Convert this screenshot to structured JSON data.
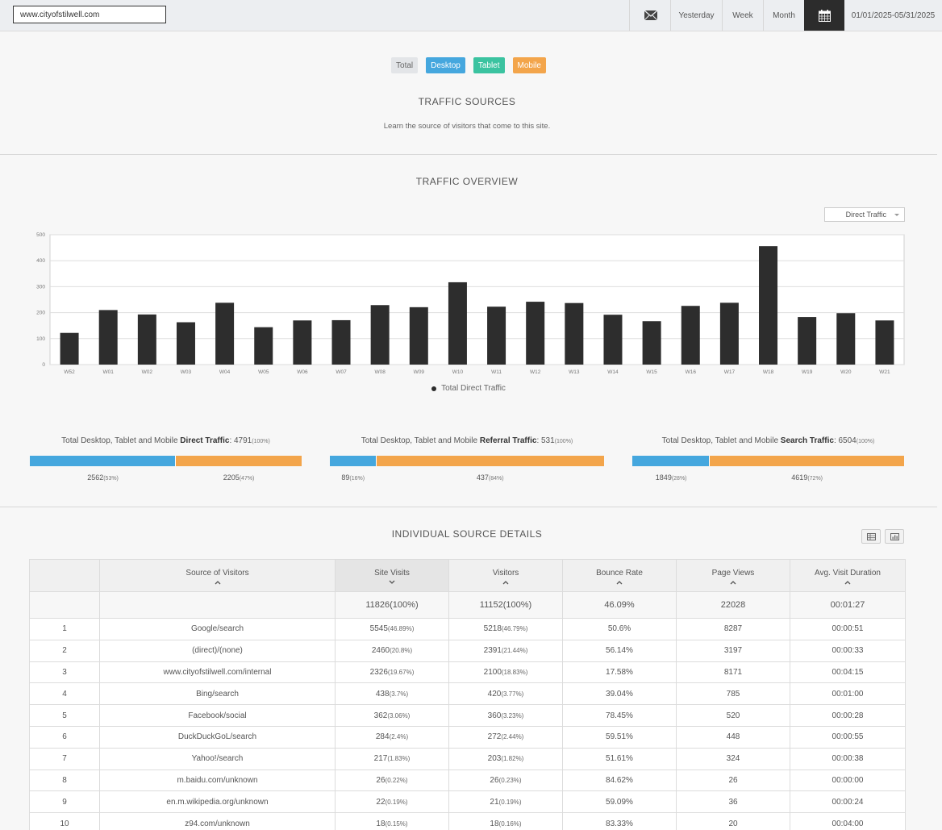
{
  "topbar": {
    "url_value": "www.cityofstilwell.com",
    "mail_icon": "mail-icon",
    "yesterday_label": "Yesterday",
    "week_label": "Week",
    "month_label": "Month",
    "calendar_icon": "calendar-icon",
    "date_range": "01/01/2025-05/31/2025"
  },
  "devices": {
    "total": "Total",
    "desktop": "Desktop",
    "tablet": "Tablet",
    "mobile": "Mobile"
  },
  "traffic_sources": {
    "title": "TRAFFIC  SOURCES",
    "subtitle": "Learn the source of visitors that come to this site."
  },
  "overview": {
    "title": "TRAFFIC  OVERVIEW",
    "dropdown_value": "Direct Traffic",
    "legend": "Total Direct Traffic"
  },
  "chart_data": {
    "type": "bar",
    "categories": [
      "W52",
      "W01",
      "W02",
      "W03",
      "W04",
      "W05",
      "W06",
      "W07",
      "W08",
      "W09",
      "W10",
      "W11",
      "W12",
      "W13",
      "W14",
      "W15",
      "W16",
      "W17",
      "W18",
      "W19",
      "W20",
      "W21"
    ],
    "series": [
      {
        "name": "Total Direct Traffic",
        "values": [
          122,
          210,
          193,
          163,
          238,
          144,
          170,
          171,
          229,
          221,
          317,
          223,
          242,
          237,
          192,
          167,
          226,
          238,
          456,
          183,
          198,
          170
        ]
      }
    ],
    "y_ticks": [
      "0",
      "100",
      "200",
      "300",
      "400",
      "500"
    ],
    "ylim": [
      0,
      500
    ],
    "grid": true,
    "legend_position": "bottom",
    "bar_color": "#2d2d2d"
  },
  "totals": [
    {
      "prefix": "Total Desktop, Tablet and Mobile ",
      "bold": "Direct Traffic",
      "value": ": 4791",
      "pct": "(100%)",
      "desktop": 2562,
      "desktop_val": "2562",
      "desktop_pct": "(53%)",
      "mobile_val": "2205",
      "mobile_pct": "(47%)"
    },
    {
      "prefix": "Total Desktop, Tablet and Mobile ",
      "bold": "Referral Traffic",
      "value": ": 531",
      "pct": "(100%)",
      "desktop": 89,
      "desktop_val": "89",
      "desktop_pct": "(16%)",
      "mobile_val": "437",
      "mobile_pct": "(84%)"
    },
    {
      "prefix": "Total Desktop, Tablet and Mobile ",
      "bold": "Search Traffic",
      "value": ": 6504",
      "pct": "(100%)",
      "desktop": 1849,
      "desktop_val": "1849",
      "desktop_pct": "(28%)",
      "mobile_val": "4619",
      "mobile_pct": "(72%)"
    }
  ],
  "details": {
    "title": "INDIVIDUAL  SOURCE  DETAILS",
    "table_icon": "table-view-icon",
    "chart_icon": "chart-view-icon",
    "headers": [
      "Source of Visitors",
      "Site Visits",
      "Visitors",
      "Bounce Rate",
      "Page Views",
      "Avg. Visit Duration"
    ],
    "summary": [
      "11826(100%)",
      "11152(100%)",
      "46.09%",
      "22028",
      "00:01:27"
    ],
    "rows": [
      {
        "rank": "1",
        "source": "Google/search",
        "visits": "5545",
        "visits_pct": "(46.89%)",
        "visitors": "5218",
        "visitors_pct": "(46.79%)",
        "bounce": "50.6%",
        "views": "8287",
        "duration": "00:00:51"
      },
      {
        "rank": "2",
        "source": "(direct)/(none)",
        "visits": "2460",
        "visits_pct": "(20.8%)",
        "visitors": "2391",
        "visitors_pct": "(21.44%)",
        "bounce": "56.14%",
        "views": "3197",
        "duration": "00:00:33"
      },
      {
        "rank": "3",
        "source": "www.cityofstilwell.com/internal",
        "visits": "2326",
        "visits_pct": "(19.67%)",
        "visitors": "2100",
        "visitors_pct": "(18.83%)",
        "bounce": "17.58%",
        "views": "8171",
        "duration": "00:04:15"
      },
      {
        "rank": "4",
        "source": "Bing/search",
        "visits": "438",
        "visits_pct": "(3.7%)",
        "visitors": "420",
        "visitors_pct": "(3.77%)",
        "bounce": "39.04%",
        "views": "785",
        "duration": "00:01:00"
      },
      {
        "rank": "5",
        "source": "Facebook/social",
        "visits": "362",
        "visits_pct": "(3.06%)",
        "visitors": "360",
        "visitors_pct": "(3.23%)",
        "bounce": "78.45%",
        "views": "520",
        "duration": "00:00:28"
      },
      {
        "rank": "6",
        "source": "DuckDuckGoL/search",
        "visits": "284",
        "visits_pct": "(2.4%)",
        "visitors": "272",
        "visitors_pct": "(2.44%)",
        "bounce": "59.51%",
        "views": "448",
        "duration": "00:00:55"
      },
      {
        "rank": "7",
        "source": "Yahoo!/search",
        "visits": "217",
        "visits_pct": "(1.83%)",
        "visitors": "203",
        "visitors_pct": "(1.82%)",
        "bounce": "51.61%",
        "views": "324",
        "duration": "00:00:38"
      },
      {
        "rank": "8",
        "source": "m.baidu.com/unknown",
        "visits": "26",
        "visits_pct": "(0.22%)",
        "visitors": "26",
        "visitors_pct": "(0.23%)",
        "bounce": "84.62%",
        "views": "26",
        "duration": "00:00:00"
      },
      {
        "rank": "9",
        "source": "en.m.wikipedia.org/unknown",
        "visits": "22",
        "visits_pct": "(0.19%)",
        "visitors": "21",
        "visitors_pct": "(0.19%)",
        "bounce": "59.09%",
        "views": "36",
        "duration": "00:00:24"
      },
      {
        "rank": "10",
        "source": "z94.com/unknown",
        "visits": "18",
        "visits_pct": "(0.15%)",
        "visitors": "18",
        "visitors_pct": "(0.16%)",
        "bounce": "83.33%",
        "views": "20",
        "duration": "00:04:00"
      }
    ]
  }
}
